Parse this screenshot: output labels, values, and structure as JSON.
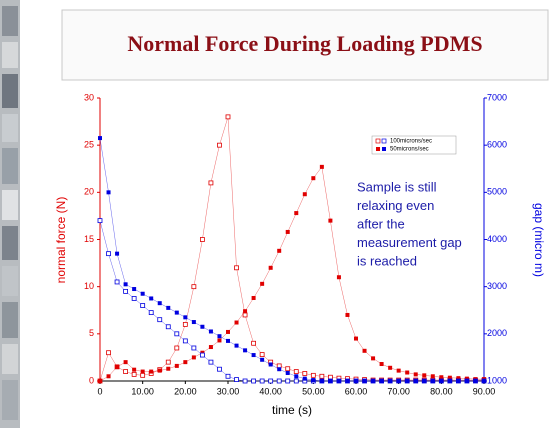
{
  "chart_data": {
    "type": "line",
    "title": "Normal Force During Loading PDMS",
    "xlabel": "time (s)",
    "ylabel": "normal force (N)",
    "y2label": "gap (micro m)",
    "annotation": [
      "Sample is still",
      "relaxing even",
      "after the",
      "measurement gap",
      "is reached"
    ],
    "x": [
      0,
      2,
      4,
      6,
      8,
      10,
      12,
      14,
      16,
      18,
      20,
      22,
      24,
      26,
      28,
      30,
      32,
      34,
      36,
      38,
      40,
      42,
      44,
      46,
      48,
      50,
      52,
      54,
      56,
      58,
      60,
      62,
      64,
      66,
      68,
      70,
      72,
      74,
      76,
      78,
      80,
      82,
      84,
      86,
      88,
      90
    ],
    "xlim": [
      0,
      90
    ],
    "xticks": [
      0,
      {
        "value": 10,
        "label": "10.00"
      },
      {
        "value": 20,
        "label": "20.00"
      },
      {
        "value": 30,
        "label": "30.00"
      },
      {
        "value": 40,
        "label": "40.00"
      },
      {
        "value": 50,
        "label": "50.00"
      },
      {
        "value": 60,
        "label": "60.00"
      },
      {
        "value": 70,
        "label": "70.00"
      },
      {
        "value": 80,
        "label": "80.00"
      },
      {
        "value": 90,
        "label": "90.00"
      }
    ],
    "ylim": [
      0,
      30
    ],
    "yticks": [
      0,
      5,
      10,
      15,
      20,
      25,
      30
    ],
    "y2lim": [
      1000,
      7000
    ],
    "y2ticks": [
      1000,
      2000,
      3000,
      4000,
      5000,
      6000,
      7000
    ],
    "legend": "top-right",
    "series": [
      {
        "name": "100microns/sec",
        "color": "#e00000",
        "marker": "open",
        "values": [
          0,
          3,
          1.5,
          1,
          0.7,
          0.6,
          0.8,
          1.2,
          2,
          3.5,
          6,
          10,
          15,
          21,
          25,
          28,
          12,
          7,
          4,
          2.8,
          2,
          1.6,
          1.3,
          1,
          0.8,
          0.6,
          0.5,
          0.4,
          0.3,
          0.25,
          0.2,
          0.15,
          0.1,
          0.1,
          0.1,
          0.1,
          0.1,
          0.1,
          0.1,
          0.1,
          0.1,
          0.1,
          0.1,
          0.1,
          0.1,
          0.1
        ]
      },
      {
        "name": "50microns/sec",
        "color": "#e00000",
        "marker": "filled",
        "values": [
          0,
          0.5,
          1.5,
          2,
          1.2,
          1,
          1,
          1.1,
          1.3,
          1.6,
          2,
          2.5,
          3,
          3.6,
          4.3,
          5.2,
          6.2,
          7.4,
          8.8,
          10.3,
          12,
          13.8,
          15.8,
          17.8,
          19.8,
          21.5,
          22.7,
          17,
          11,
          7,
          4.5,
          3.2,
          2.4,
          1.8,
          1.4,
          1.1,
          0.9,
          0.7,
          0.6,
          0.5,
          0.4,
          0.35,
          0.3,
          0.25,
          0.2,
          0.2
        ]
      },
      {
        "color": "#0000e0",
        "marker": "open",
        "axis": "y2",
        "values": [
          4400,
          3700,
          3100,
          2900,
          2750,
          2600,
          2450,
          2300,
          2150,
          2000,
          1850,
          1700,
          1550,
          1400,
          1250,
          1100,
          1030,
          1000,
          1000,
          1000,
          1000,
          1000,
          1000,
          1000,
          1000,
          1000,
          1000,
          1000,
          1000,
          1000,
          1000,
          1000,
          1000,
          1000,
          1000,
          1000,
          1000,
          1000,
          1000,
          1000,
          1000,
          1000,
          1000,
          1000,
          1000,
          1000
        ]
      },
      {
        "color": "#0000e0",
        "marker": "filled",
        "axis": "y2",
        "values": [
          6150,
          5000,
          3700,
          3050,
          2950,
          2850,
          2750,
          2650,
          2550,
          2450,
          2350,
          2250,
          2150,
          2050,
          1950,
          1850,
          1750,
          1650,
          1550,
          1450,
          1350,
          1250,
          1170,
          1100,
          1050,
          1020,
          1000,
          1000,
          1000,
          1000,
          1000,
          1000,
          1000,
          1000,
          1000,
          1000,
          1000,
          1000,
          1000,
          1000,
          1000,
          1000,
          1000,
          1000,
          1000,
          1000
        ]
      }
    ]
  }
}
